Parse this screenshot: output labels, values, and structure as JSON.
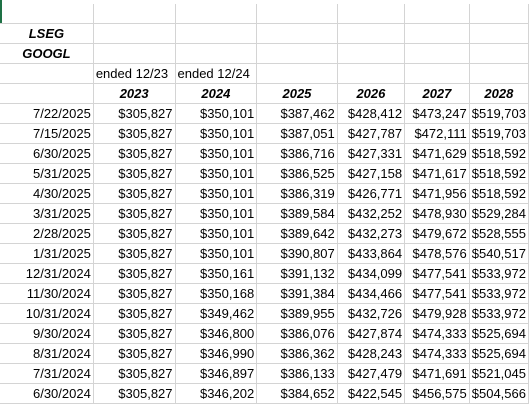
{
  "sheet": {
    "header_rows": {
      "source": "LSEG",
      "ticker": "GOOGL",
      "ended_labels": [
        "ended 12/23",
        "ended 12/24"
      ],
      "year_headers": [
        "2023",
        "2024",
        "2025",
        "2026",
        "2027",
        "2028"
      ]
    },
    "rows": [
      {
        "date": "7/22/2025",
        "values": [
          "$305,827",
          "$350,101",
          "$387,462",
          "$428,412",
          "$473,247",
          "$519,703"
        ]
      },
      {
        "date": "7/15/2025",
        "values": [
          "$305,827",
          "$350,101",
          "$387,051",
          "$427,787",
          "$472,111",
          "$519,703"
        ]
      },
      {
        "date": "6/30/2025",
        "values": [
          "$305,827",
          "$350,101",
          "$386,716",
          "$427,331",
          "$471,629",
          "$518,592"
        ]
      },
      {
        "date": "5/31/2025",
        "values": [
          "$305,827",
          "$350,101",
          "$386,525",
          "$427,158",
          "$471,617",
          "$518,592"
        ]
      },
      {
        "date": "4/30/2025",
        "values": [
          "$305,827",
          "$350,101",
          "$386,319",
          "$426,771",
          "$471,956",
          "$518,592"
        ]
      },
      {
        "date": "3/31/2025",
        "values": [
          "$305,827",
          "$350,101",
          "$389,584",
          "$432,252",
          "$478,930",
          "$529,284"
        ]
      },
      {
        "date": "2/28/2025",
        "values": [
          "$305,827",
          "$350,101",
          "$389,642",
          "$432,273",
          "$479,672",
          "$528,555"
        ]
      },
      {
        "date": "1/31/2025",
        "values": [
          "$305,827",
          "$350,101",
          "$390,807",
          "$433,864",
          "$478,576",
          "$540,517"
        ]
      },
      {
        "date": "12/31/2024",
        "values": [
          "$305,827",
          "$350,161",
          "$391,132",
          "$434,099",
          "$477,541",
          "$533,972"
        ]
      },
      {
        "date": "11/30/2024",
        "values": [
          "$305,827",
          "$350,168",
          "$391,384",
          "$434,466",
          "$477,541",
          "$533,972"
        ]
      },
      {
        "date": "10/31/2024",
        "values": [
          "$305,827",
          "$349,462",
          "$389,955",
          "$432,726",
          "$479,928",
          "$533,972"
        ]
      },
      {
        "date": "9/30/2024",
        "values": [
          "$305,827",
          "$346,800",
          "$386,076",
          "$427,874",
          "$474,333",
          "$525,694"
        ]
      },
      {
        "date": "8/31/2024",
        "values": [
          "$305,827",
          "$346,990",
          "$386,362",
          "$428,243",
          "$474,333",
          "$525,694"
        ]
      },
      {
        "date": "7/31/2024",
        "values": [
          "$305,827",
          "$346,897",
          "$386,133",
          "$427,479",
          "$471,691",
          "$521,045"
        ]
      },
      {
        "date": "6/30/2024",
        "values": [
          "$305,827",
          "$346,202",
          "$384,652",
          "$422,545",
          "$456,575",
          "$504,566"
        ]
      }
    ]
  },
  "colors": {
    "gridline": "#d4d4d4",
    "selection": "#1e7145"
  }
}
